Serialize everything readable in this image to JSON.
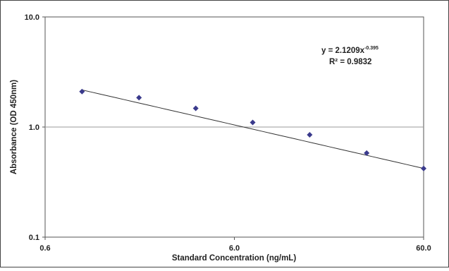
{
  "chart_data": {
    "type": "scatter",
    "title": "",
    "xlabel": "Standard Concentration (ng/mL)",
    "ylabel": "Absorbance (OD 450nm)",
    "x_scale": "log",
    "y_scale": "log",
    "xlim": [
      0.6,
      60.0
    ],
    "ylim": [
      0.1,
      10.0
    ],
    "x_ticks": [
      "0.6",
      "6.0",
      "60.0"
    ],
    "y_ticks": [
      "10.0",
      "1.0",
      "0.1"
    ],
    "grid": "horizontal major lines",
    "legend": "none",
    "series": [
      {
        "x": [
          0.94,
          1.88,
          3.75,
          7.5,
          15,
          30,
          60
        ],
        "y": [
          2.1,
          1.85,
          1.48,
          1.1,
          0.85,
          0.58,
          0.42
        ],
        "color": "#3a3a8c"
      }
    ],
    "trendline": {
      "type": "power",
      "coefficient": 2.1209,
      "exponent": -0.395,
      "equation_prefix": "y = 2.1209x",
      "equation_exponent": "-0.395",
      "r_squared_text": "R² = 0.9832",
      "color": "#333333"
    }
  }
}
